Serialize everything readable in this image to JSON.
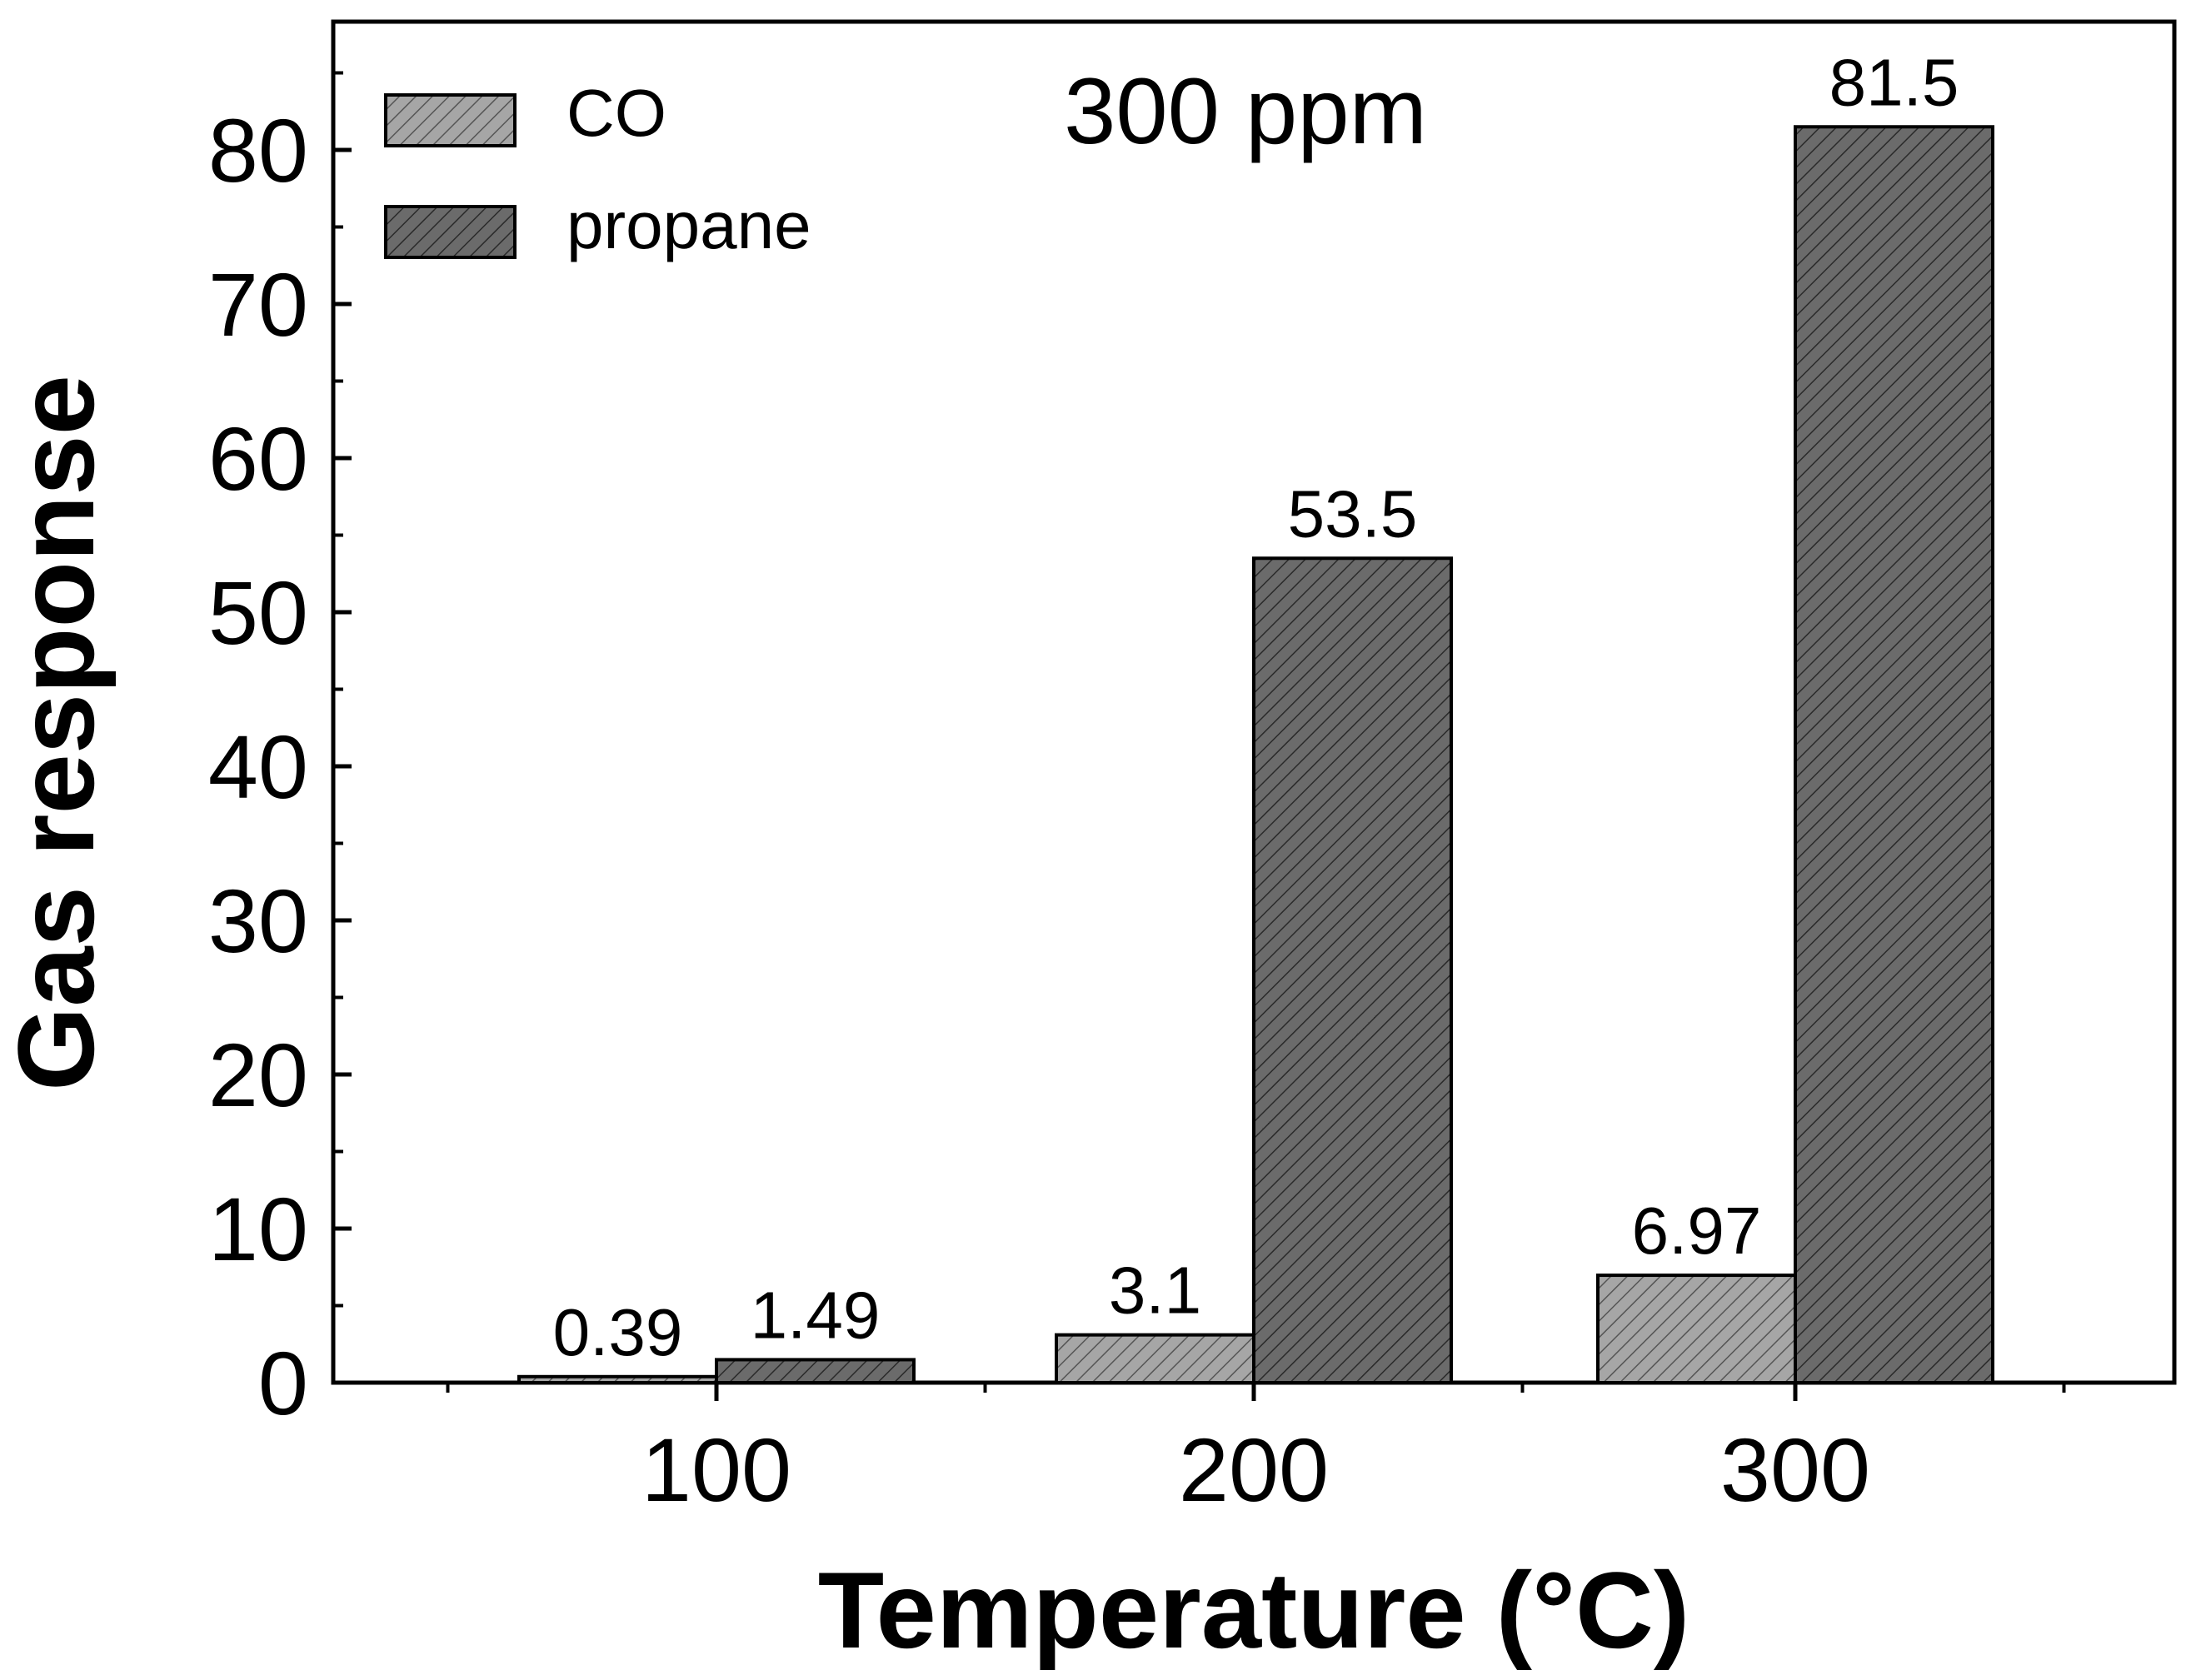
{
  "chart_data": {
    "type": "bar",
    "title": "300 ppm",
    "xlabel": "Temperature (°C)",
    "ylabel": "Gas response",
    "categories": [
      "100",
      "200",
      "300"
    ],
    "ylim": [
      0,
      88.5
    ],
    "yticks": [
      0,
      10,
      20,
      30,
      40,
      50,
      60,
      70,
      80
    ],
    "ytick_labels": [
      "0",
      "10",
      "20",
      "30",
      "40",
      "50",
      "60",
      "70",
      "80"
    ],
    "grid": false,
    "legend_position": "top-left",
    "series": [
      {
        "name": "CO",
        "values": [
          0.39,
          3.1,
          6.97
        ],
        "labels": [
          "0.39",
          "3.1",
          "6.97"
        ],
        "color": "#a6a6a6",
        "hatch_color": "#555555"
      },
      {
        "name": "propane",
        "values": [
          1.49,
          53.5,
          81.5
        ],
        "labels": [
          "1.49",
          "53.5",
          "81.5"
        ],
        "color": "#6b6b6b",
        "hatch_color": "#2a2a2a"
      }
    ]
  }
}
